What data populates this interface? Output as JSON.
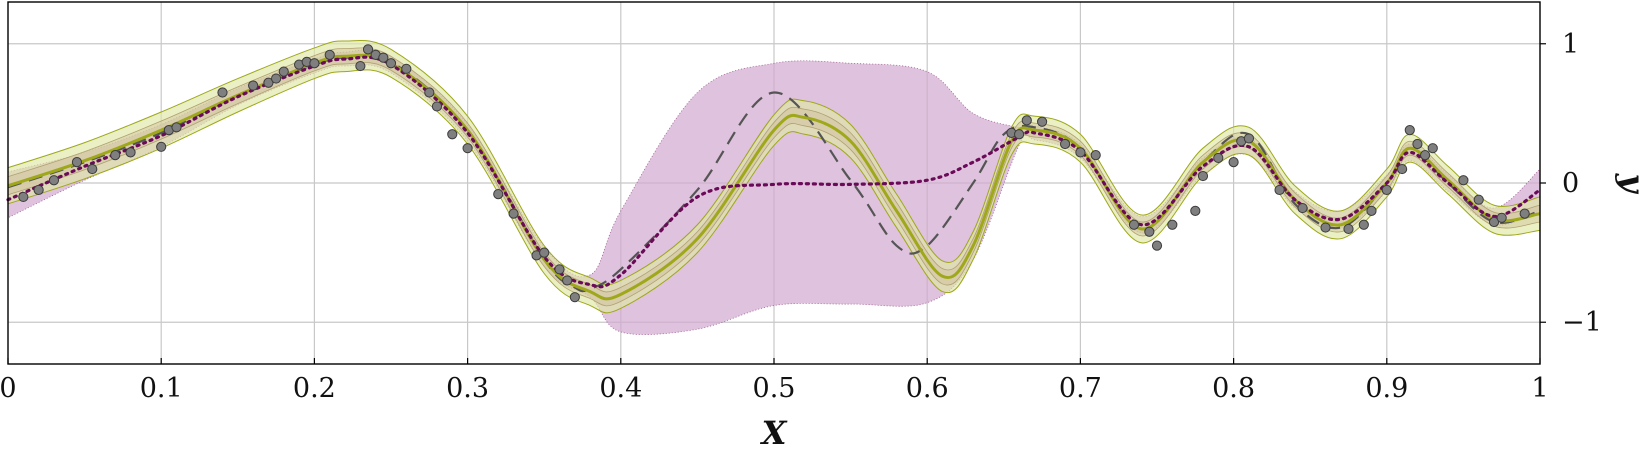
{
  "chart_data": {
    "type": "line",
    "xlabel": "X",
    "ylabel": "y",
    "xlim": [
      0,
      1
    ],
    "ylim": [
      -1.3,
      1.3
    ],
    "x_ticks": [
      0,
      0.1,
      0.2,
      0.3,
      0.4,
      0.5,
      0.6,
      0.7,
      0.8,
      0.9,
      1
    ],
    "x_tick_labels": [
      "0",
      "0.1",
      "0.2",
      "0.3",
      "0.4",
      "0.5",
      "0.6",
      "0.7",
      "0.8",
      "0.9",
      "1"
    ],
    "y_ticks": [
      -1,
      0,
      1
    ],
    "y_tick_labels": [
      "−1",
      "0",
      "1"
    ],
    "grid": true,
    "colors": {
      "true_function": "#555555",
      "model_a": "#9ea81a",
      "model_a_band": "#dfe8a4",
      "model_b": "#6a0a58",
      "model_b_band": "#d2a8cf",
      "observations": "#7f7f7f"
    },
    "series": [
      {
        "style": "dashed",
        "x": [
          0,
          0.05,
          0.1,
          0.15,
          0.2,
          0.22,
          0.25,
          0.3,
          0.35,
          0.37,
          0.38,
          0.4,
          0.45,
          0.5,
          0.55,
          0.58,
          0.6,
          0.63,
          0.65,
          0.67,
          0.7,
          0.74,
          0.78,
          0.81,
          0.84,
          0.87,
          0.9,
          0.915,
          0.94,
          0.97,
          1
        ],
        "y": [
          -0.03,
          0.15,
          0.36,
          0.63,
          0.85,
          0.9,
          0.87,
          0.38,
          -0.55,
          -0.75,
          -0.76,
          -0.62,
          -0.05,
          0.65,
          0.02,
          -0.45,
          -0.45,
          0.0,
          0.35,
          0.4,
          0.25,
          -0.33,
          0.15,
          0.35,
          -0.15,
          -0.32,
          0.0,
          0.25,
          0.0,
          -0.28,
          -0.2
        ]
      },
      {
        "style": "solid",
        "x": [
          0,
          0.05,
          0.1,
          0.15,
          0.2,
          0.22,
          0.25,
          0.3,
          0.35,
          0.38,
          0.4,
          0.45,
          0.5,
          0.52,
          0.55,
          0.58,
          0.61,
          0.63,
          0.655,
          0.67,
          0.7,
          0.74,
          0.78,
          0.81,
          0.84,
          0.87,
          0.9,
          0.915,
          0.94,
          0.97,
          1
        ],
        "y": [
          -0.02,
          0.16,
          0.38,
          0.63,
          0.86,
          0.91,
          0.86,
          0.38,
          -0.55,
          -0.78,
          -0.8,
          -0.4,
          0.38,
          0.47,
          0.3,
          -0.2,
          -0.67,
          -0.45,
          0.3,
          0.38,
          0.25,
          -0.33,
          0.15,
          0.3,
          -0.12,
          -0.3,
          0.0,
          0.25,
          0.02,
          -0.26,
          -0.22
        ],
        "band_width": [
          0.13,
          0.13,
          0.13,
          0.12,
          0.11,
          0.11,
          0.1,
          0.1,
          0.1,
          0.1,
          0.1,
          0.1,
          0.11,
          0.12,
          0.12,
          0.12,
          0.11,
          0.1,
          0.1,
          0.1,
          0.1,
          0.1,
          0.1,
          0.1,
          0.1,
          0.1,
          0.1,
          0.1,
          0.1,
          0.1,
          0.12
        ]
      },
      {
        "style": "dotted",
        "x": [
          0,
          0.05,
          0.1,
          0.15,
          0.2,
          0.22,
          0.25,
          0.3,
          0.35,
          0.38,
          0.4,
          0.45,
          0.5,
          0.55,
          0.6,
          0.63,
          0.66,
          0.67,
          0.7,
          0.74,
          0.78,
          0.81,
          0.84,
          0.87,
          0.9,
          0.915,
          0.94,
          0.97,
          1
        ],
        "y": [
          -0.12,
          0.12,
          0.34,
          0.62,
          0.84,
          0.89,
          0.85,
          0.36,
          -0.53,
          -0.73,
          -0.66,
          -0.1,
          -0.01,
          -0.01,
          0.02,
          0.15,
          0.33,
          0.36,
          0.23,
          -0.3,
          0.12,
          0.26,
          -0.12,
          -0.26,
          0.0,
          0.22,
          0.0,
          -0.24,
          -0.05
        ],
        "band_lower": [
          -0.25,
          0.02,
          0.26,
          0.56,
          0.79,
          0.84,
          0.79,
          0.3,
          -0.6,
          -0.82,
          -1.07,
          -1.05,
          -0.88,
          -0.87,
          -0.86,
          -0.55,
          0.27,
          0.31,
          0.18,
          -0.36,
          0.06,
          0.2,
          -0.18,
          -0.32,
          -0.06,
          0.16,
          -0.06,
          -0.3,
          -0.2
        ],
        "band_upper": [
          0.08,
          0.22,
          0.42,
          0.68,
          0.89,
          0.94,
          0.91,
          0.42,
          -0.46,
          -0.66,
          -0.2,
          0.65,
          0.86,
          0.86,
          0.8,
          0.5,
          0.4,
          0.41,
          0.28,
          -0.24,
          0.18,
          0.32,
          -0.06,
          -0.2,
          0.06,
          0.28,
          0.06,
          -0.18,
          0.1
        ]
      }
    ],
    "points": {
      "x": [
        0.01,
        0.02,
        0.03,
        0.045,
        0.055,
        0.07,
        0.08,
        0.1,
        0.105,
        0.11,
        0.14,
        0.16,
        0.17,
        0.175,
        0.18,
        0.19,
        0.195,
        0.2,
        0.21,
        0.23,
        0.235,
        0.24,
        0.245,
        0.25,
        0.26,
        0.275,
        0.28,
        0.29,
        0.3,
        0.32,
        0.33,
        0.345,
        0.35,
        0.36,
        0.365,
        0.37,
        0.655,
        0.66,
        0.665,
        0.675,
        0.69,
        0.7,
        0.71,
        0.735,
        0.745,
        0.75,
        0.76,
        0.775,
        0.78,
        0.79,
        0.8,
        0.805,
        0.81,
        0.83,
        0.845,
        0.86,
        0.875,
        0.885,
        0.89,
        0.9,
        0.91,
        0.915,
        0.92,
        0.925,
        0.93,
        0.95,
        0.96,
        0.97,
        0.975,
        0.99
      ],
      "y": [
        -0.1,
        -0.05,
        0.02,
        0.15,
        0.1,
        0.2,
        0.22,
        0.26,
        0.38,
        0.4,
        0.65,
        0.7,
        0.72,
        0.75,
        0.8,
        0.85,
        0.87,
        0.86,
        0.92,
        0.84,
        0.96,
        0.92,
        0.9,
        0.86,
        0.82,
        0.65,
        0.55,
        0.35,
        0.25,
        -0.08,
        -0.22,
        -0.52,
        -0.5,
        -0.62,
        -0.7,
        -0.82,
        0.36,
        0.35,
        0.45,
        0.44,
        0.28,
        0.22,
        0.2,
        -0.3,
        -0.35,
        -0.45,
        -0.3,
        -0.2,
        0.05,
        0.18,
        0.15,
        0.3,
        0.32,
        -0.05,
        -0.18,
        -0.32,
        -0.33,
        -0.3,
        -0.2,
        -0.05,
        0.1,
        0.38,
        0.28,
        0.2,
        0.25,
        0.02,
        -0.12,
        -0.28,
        -0.25,
        -0.22
      ]
    }
  }
}
